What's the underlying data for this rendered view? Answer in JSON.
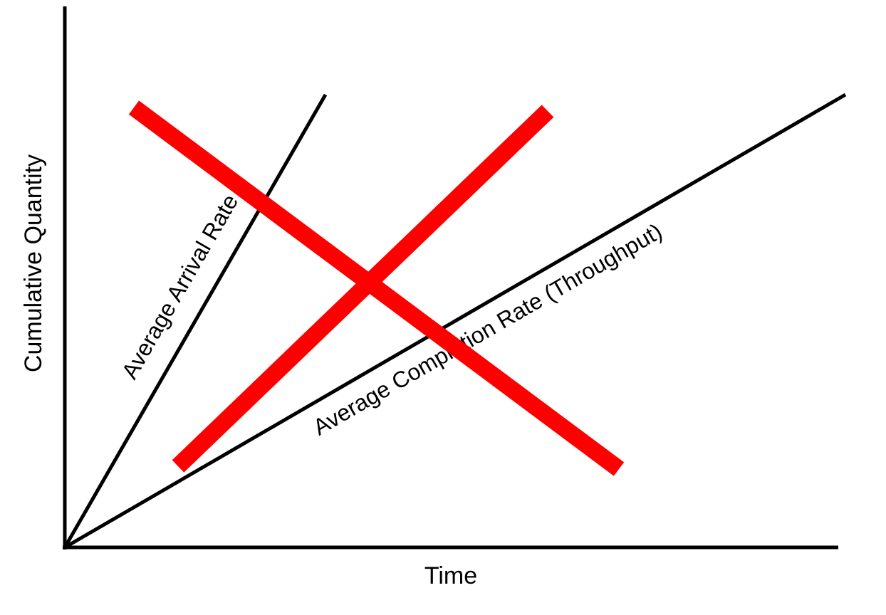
{
  "diagram": {
    "x_axis_label": "Time",
    "y_axis_label": "Cumulative Quantity",
    "lines": [
      {
        "id": "arrival",
        "label": "Average Arrival Rate"
      },
      {
        "id": "completion",
        "label": "Average Completion Rate (Throughput)"
      }
    ],
    "colors": {
      "axis": "#000000",
      "lines": "#000000",
      "cross_mark": "#ff0000"
    },
    "cross_mark": "large red X drawn over the diagram"
  }
}
